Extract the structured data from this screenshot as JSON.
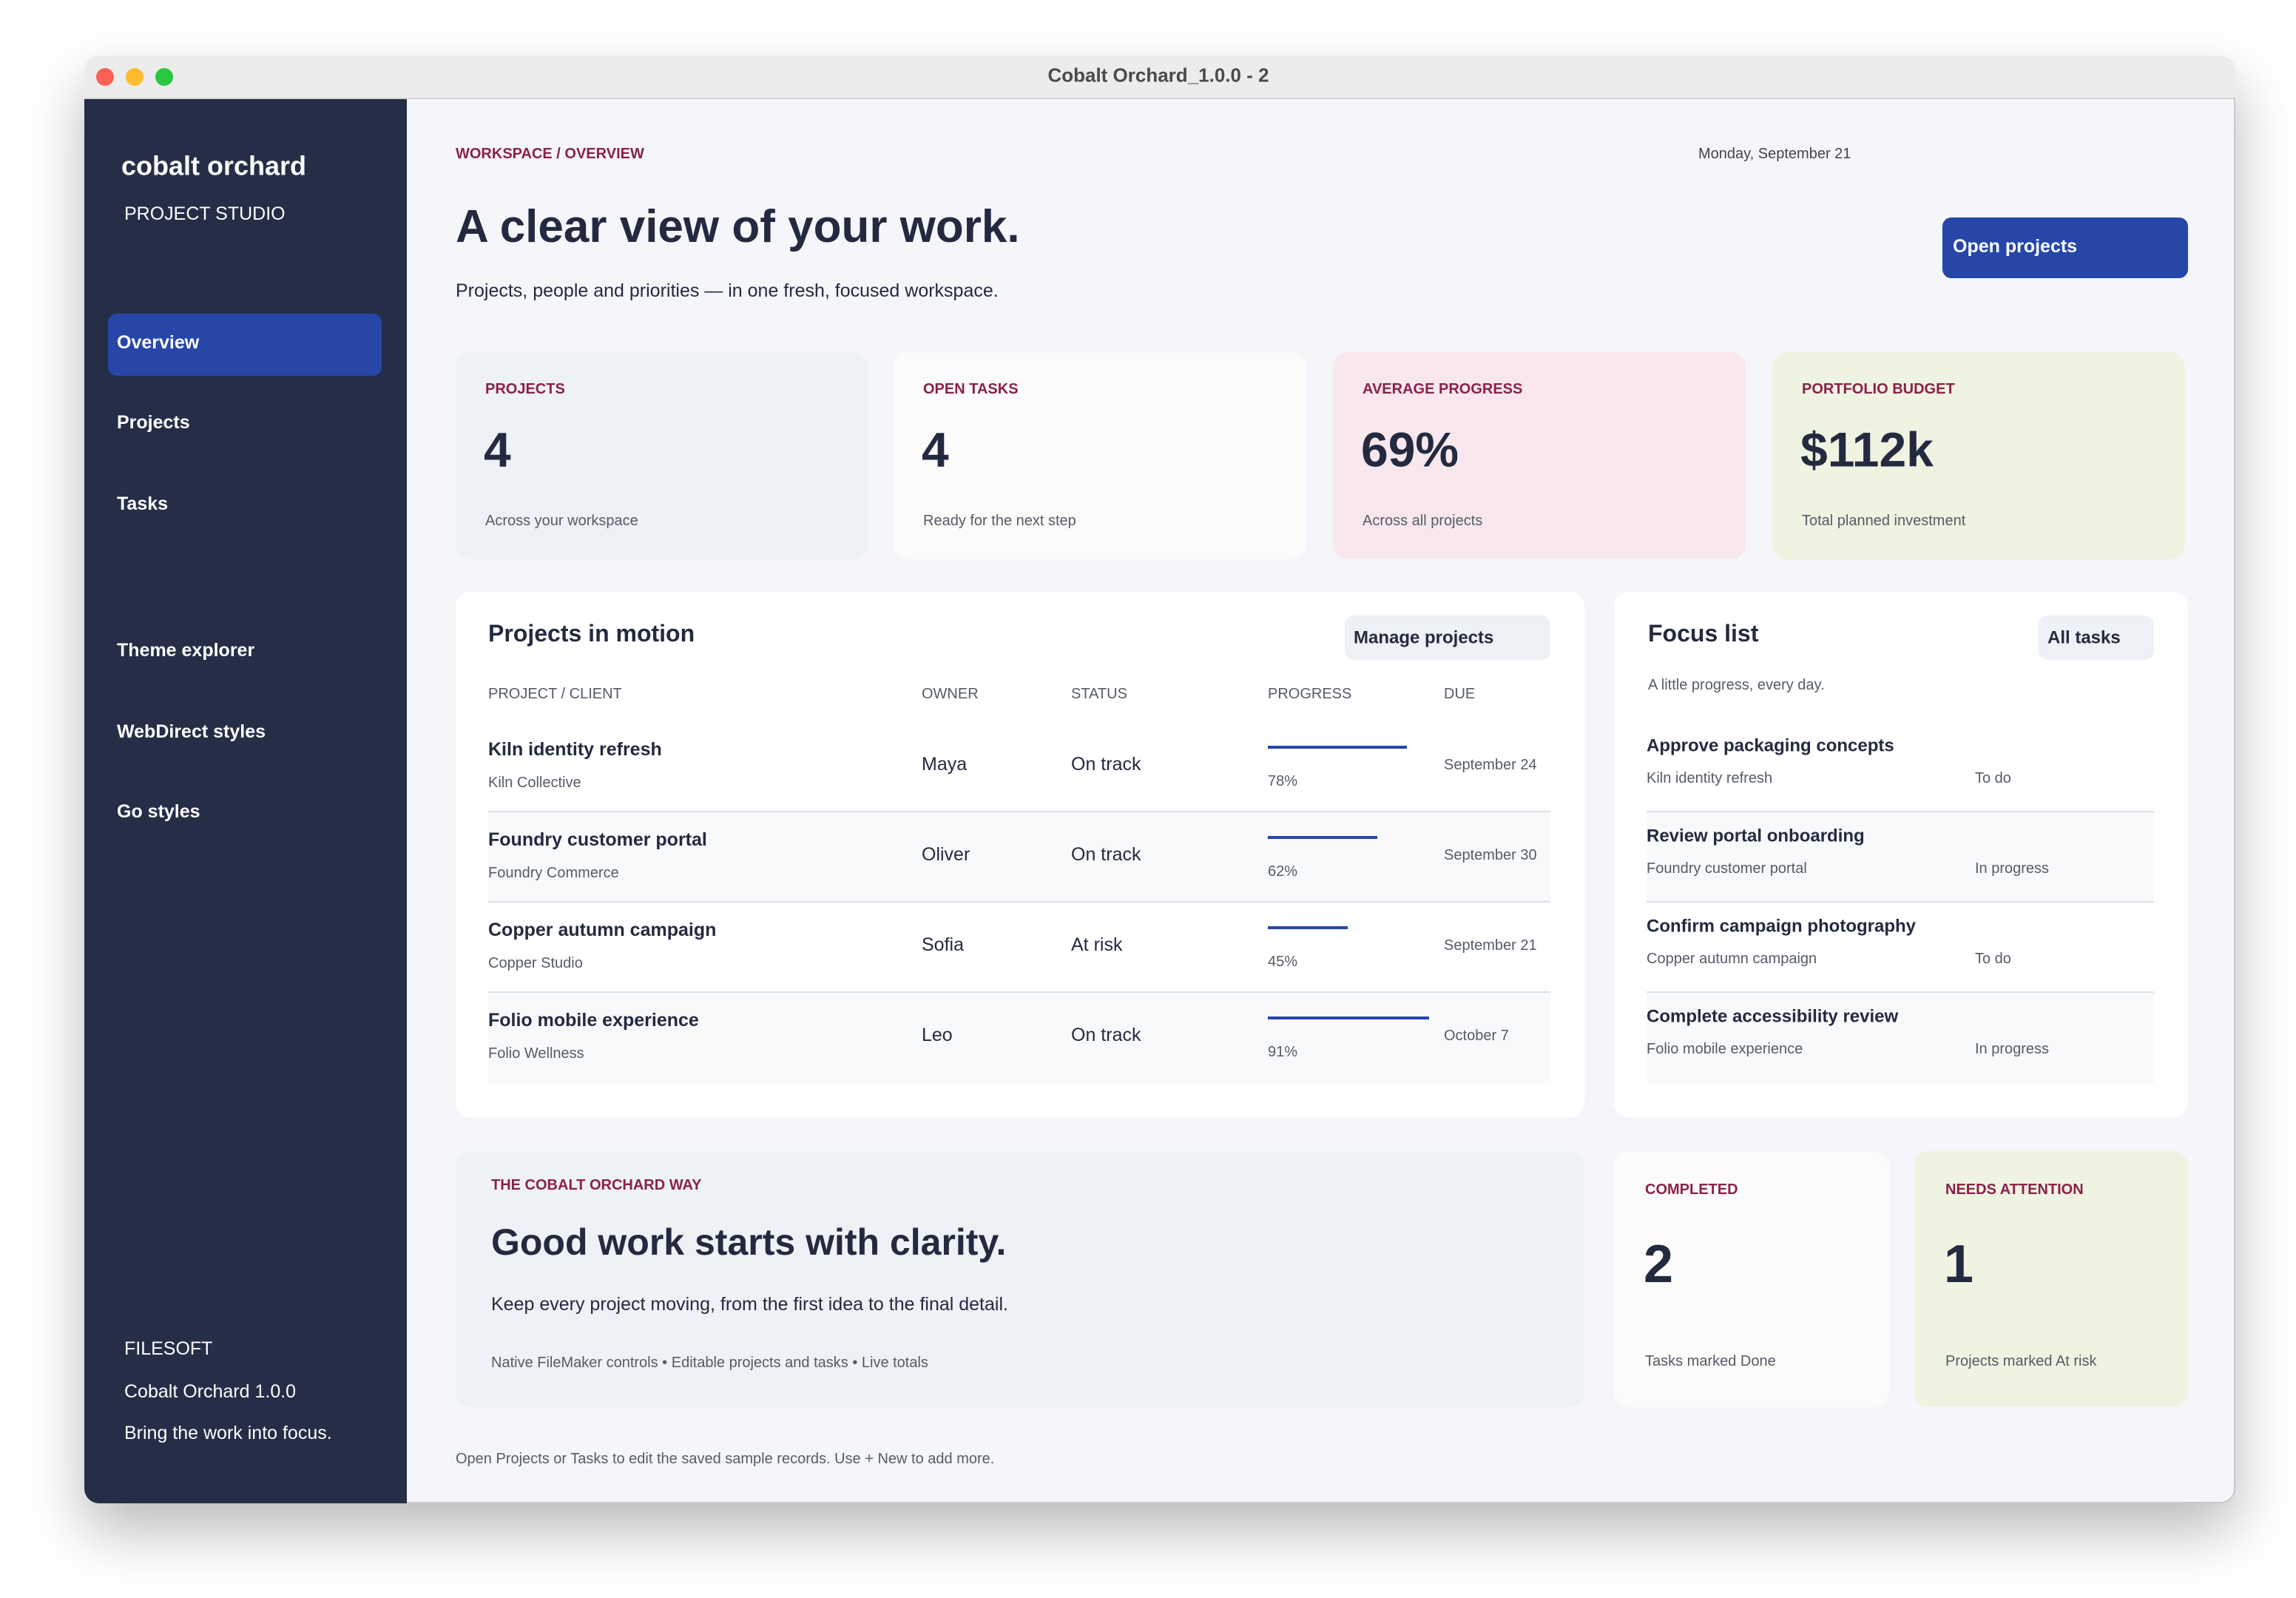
{
  "window": {
    "title": "Cobalt Orchard_1.0.0 - 2"
  },
  "sidebar": {
    "brand": "cobalt orchard",
    "subtitle": "PROJECT STUDIO",
    "nav": [
      "Overview",
      "Projects",
      "Tasks",
      "Theme explorer",
      "WebDirect styles",
      "Go styles"
    ],
    "footer": [
      "FILESOFT",
      "Cobalt Orchard 1.0.0",
      "Bring the work into focus."
    ]
  },
  "header": {
    "breadcrumb": "WORKSPACE / OVERVIEW",
    "date": "Monday, September 21",
    "title": "A clear view of your work.",
    "subtitle": "Projects, people and priorities — in one fresh, focused workspace.",
    "button": "Open projects"
  },
  "stats": [
    {
      "label": "PROJECTS",
      "value": "4",
      "note": "Across your workspace"
    },
    {
      "label": "OPEN TASKS",
      "value": "4",
      "note": "Ready for the next step"
    },
    {
      "label": "AVERAGE PROGRESS",
      "value": "69%",
      "note": "Across all projects"
    },
    {
      "label": "PORTFOLIO BUDGET",
      "value": "$112k",
      "note": "Total planned investment"
    }
  ],
  "projects": {
    "title": "Projects in motion",
    "button": "Manage projects",
    "columns": [
      "PROJECT / CLIENT",
      "OWNER",
      "STATUS",
      "PROGRESS",
      "DUE"
    ],
    "rows": [
      {
        "name": "Kiln identity refresh",
        "client": "Kiln Collective",
        "owner": "Maya",
        "status": "On track",
        "progress": {
          "value": 78,
          "label": "78%"
        },
        "due": "September 24"
      },
      {
        "name": "Foundry customer portal",
        "client": "Foundry Commerce",
        "owner": "Oliver",
        "status": "On track",
        "progress": {
          "value": 62,
          "label": "62%"
        },
        "due": "September 30"
      },
      {
        "name": "Copper autumn campaign",
        "client": "Copper Studio",
        "owner": "Sofia",
        "status": "At risk",
        "progress": {
          "value": 45,
          "label": "45%"
        },
        "due": "September 21"
      },
      {
        "name": "Folio mobile experience",
        "client": "Folio Wellness",
        "owner": "Leo",
        "status": "On track",
        "progress": {
          "value": 91,
          "label": "91%"
        },
        "due": "October 7"
      }
    ]
  },
  "focus": {
    "title": "Focus list",
    "button": "All tasks",
    "subtitle": "A little progress, every day.",
    "items": [
      {
        "title": "Approve packaging concepts",
        "project": "Kiln identity refresh",
        "status": "To do"
      },
      {
        "title": "Review portal onboarding",
        "project": "Foundry customer portal",
        "status": "In progress"
      },
      {
        "title": "Confirm campaign photography",
        "project": "Copper autumn campaign",
        "status": "To do"
      },
      {
        "title": "Complete accessibility review",
        "project": "Folio mobile experience",
        "status": "In progress"
      }
    ]
  },
  "banner": {
    "eyebrow": "THE COBALT ORCHARD WAY",
    "title": "Good work starts with clarity.",
    "text": "Keep every project moving, from the first idea to the final detail.",
    "features": "Native FileMaker controls • Editable projects and tasks • Live totals"
  },
  "summary": [
    {
      "label": "COMPLETED",
      "value": "2",
      "note": "Tasks marked Done"
    },
    {
      "label": "NEEDS ATTENTION",
      "value": "1",
      "note": "Projects marked At risk"
    }
  ],
  "footer_note": "Open Projects or Tasks to edit the saved sample records. Use + New to add more."
}
